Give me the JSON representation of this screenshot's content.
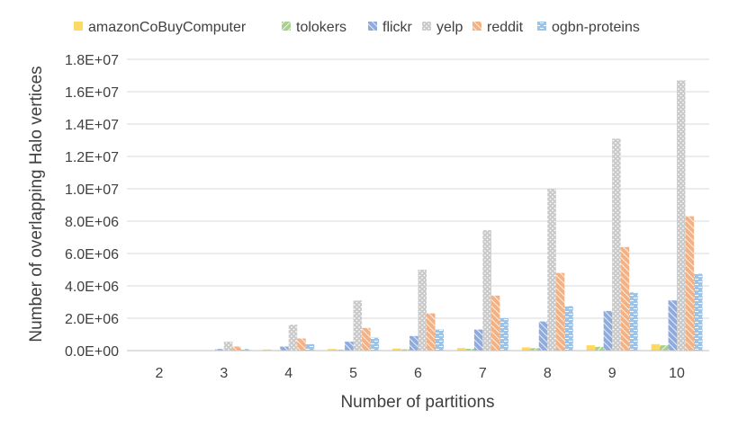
{
  "chart_data": {
    "type": "bar",
    "title": "",
    "xlabel": "Number of partitions",
    "ylabel": "Number of overlapping Halo vertices",
    "categories": [
      "2",
      "3",
      "4",
      "5",
      "6",
      "7",
      "8",
      "9",
      "10"
    ],
    "ylim": [
      0,
      18000000
    ],
    "yticks": [
      0,
      2000000,
      4000000,
      6000000,
      8000000,
      10000000,
      12000000,
      14000000,
      16000000,
      18000000
    ],
    "ytick_labels": [
      "0.0E+00",
      "2.0E+06",
      "4.0E+06",
      "6.0E+06",
      "8.0E+06",
      "1.0E+07",
      "1.2E+07",
      "1.4E+07",
      "1.6E+07",
      "1.8E+07"
    ],
    "grid": true,
    "legend_position": "top",
    "series": [
      {
        "name": "amazonCoBuyComputer",
        "color": "#FFD966",
        "pattern": "solid",
        "values": [
          0,
          30000,
          70000,
          100000,
          130000,
          160000,
          200000,
          330000,
          400000
        ]
      },
      {
        "name": "tolokers",
        "color": "#A9D18E",
        "pattern": "diagonal",
        "values": [
          0,
          10000,
          30000,
          60000,
          80000,
          110000,
          150000,
          230000,
          330000
        ]
      },
      {
        "name": "flickr",
        "color": "#8FAADC",
        "pattern": "diagonal",
        "values": [
          0,
          100000,
          250000,
          550000,
          900000,
          1300000,
          1800000,
          2450000,
          3100000
        ]
      },
      {
        "name": "yelp",
        "color": "#C9C9C9",
        "pattern": "dots",
        "values": [
          0,
          550000,
          1600000,
          3100000,
          5000000,
          7450000,
          10000000,
          13100000,
          16700000
        ]
      },
      {
        "name": "reddit",
        "color": "#F4B183",
        "pattern": "diagonal",
        "values": [
          0,
          250000,
          750000,
          1400000,
          2300000,
          3400000,
          4800000,
          6400000,
          8300000
        ]
      },
      {
        "name": "ogbn-proteins",
        "color": "#9DC3E6",
        "pattern": "dashes",
        "values": [
          0,
          100000,
          400000,
          800000,
          1300000,
          2000000,
          2750000,
          3600000,
          4750000
        ]
      }
    ]
  }
}
